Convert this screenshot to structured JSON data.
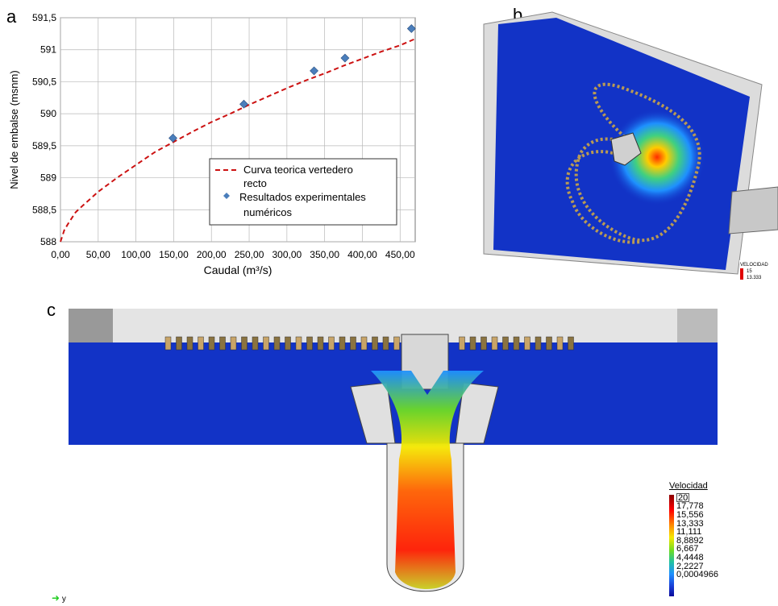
{
  "panels": {
    "a": {
      "letter": "a"
    },
    "b": {
      "letter": "b",
      "legend_title": "VELOCIDAD",
      "legend_v1": "15",
      "legend_v2": "13.333"
    },
    "c": {
      "letter": "c",
      "axis_label": "y"
    }
  },
  "chart_data": {
    "type": "scatter",
    "title": "",
    "xlabel": "Caudal (m³/s)",
    "ylabel": "Nivel de embalse (msnm)",
    "xlim": [
      0,
      470
    ],
    "ylim": [
      588,
      591.5
    ],
    "x_ticks": [
      "0,00",
      "50,00",
      "100,00",
      "150,00",
      "200,00",
      "250,00",
      "300,00",
      "350,00",
      "400,00",
      "450,00"
    ],
    "x_tick_values": [
      0,
      50,
      100,
      150,
      200,
      250,
      300,
      350,
      400,
      450
    ],
    "y_ticks": [
      "588",
      "588,5",
      "589",
      "589,5",
      "590",
      "590,5",
      "591",
      "591,5"
    ],
    "y_tick_values": [
      588,
      588.5,
      589,
      589.5,
      590,
      590.5,
      591,
      591.5
    ],
    "grid": true,
    "legend_position": "lower-right",
    "series": [
      {
        "name": "Curva teorica vertedero recto",
        "style": "dashed-line",
        "color": "#cc1111",
        "x": [
          0,
          5,
          10,
          20,
          30,
          50,
          75,
          100,
          125,
          150,
          175,
          200,
          225,
          250,
          275,
          300,
          325,
          350,
          375,
          400,
          425,
          450,
          470
        ],
        "y": [
          588.0,
          588.18,
          588.28,
          588.46,
          588.57,
          588.78,
          589.0,
          589.2,
          589.4,
          589.56,
          589.72,
          589.87,
          590.0,
          590.14,
          590.27,
          590.4,
          590.52,
          590.63,
          590.75,
          590.86,
          590.97,
          591.07,
          591.17
        ]
      },
      {
        "name": "Resultados experimentales numéricos",
        "style": "diamond-marker",
        "color": "#4a7ebb",
        "x": [
          149,
          243,
          336,
          377,
          465
        ],
        "y": [
          589.62,
          590.15,
          590.67,
          590.87,
          591.33
        ]
      }
    ]
  },
  "legend_c": {
    "title": "Velocidad",
    "labels": [
      "20",
      "17,778",
      "15,556",
      "13,333",
      "11,111",
      "8,8892",
      "6,667",
      "4,4448",
      "2,2227",
      "0,0004966"
    ]
  },
  "colors": {
    "water_deep": "#1233c6",
    "grid": "#b8b8b8"
  }
}
